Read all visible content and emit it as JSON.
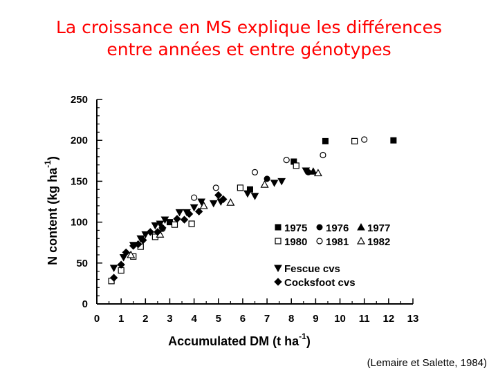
{
  "slide": {
    "title_line1": "La croissance en MS explique les différences",
    "title_line2": "entre années et entre génotypes",
    "citation": "(Lemaire et Salette, 1984)"
  },
  "colors": {
    "title": "#ff0000",
    "marks": "#000000"
  },
  "chart_data": {
    "type": "scatter",
    "xlabel": "Accumulated DM  (t ha",
    "xlabel_sup": "-1",
    "xlabel_end": ")",
    "ylabel": "N content  (kg ha",
    "ylabel_sup": "-1",
    "ylabel_end": ")",
    "xlim": [
      0,
      13
    ],
    "ylim": [
      0,
      250
    ],
    "xticks": [
      "0",
      "1",
      "2",
      "3",
      "4",
      "5",
      "6",
      "7",
      "8",
      "9",
      "10",
      "11",
      "12",
      "13"
    ],
    "yticks": [
      "0",
      "50",
      "100",
      "150",
      "200",
      "250"
    ],
    "grid": false,
    "legend_placement": "right",
    "legend": {
      "years_row1": [
        "1975",
        "1976",
        "1977"
      ],
      "years_row2": [
        "1980",
        "1981",
        "1982"
      ],
      "groups": [
        "Fescue cvs",
        "Cocksfoot cvs"
      ]
    },
    "series": [
      {
        "name": "1975",
        "marker": "square-filled",
        "points": [
          [
            3.0,
            100
          ],
          [
            6.3,
            140
          ],
          [
            8.1,
            174
          ],
          [
            9.4,
            199
          ],
          [
            12.2,
            200
          ]
        ]
      },
      {
        "name": "1976",
        "marker": "circle-filled",
        "points": [
          [
            7.0,
            153
          ],
          [
            8.7,
            161
          ]
        ]
      },
      {
        "name": "1977",
        "marker": "triangle-up-filled",
        "points": [
          [
            8.9,
            162
          ]
        ]
      },
      {
        "name": "1980",
        "marker": "square-open",
        "points": [
          [
            0.6,
            28
          ],
          [
            1.0,
            41
          ],
          [
            1.5,
            58
          ],
          [
            1.8,
            70
          ],
          [
            2.4,
            82
          ],
          [
            3.2,
            97
          ],
          [
            3.9,
            98
          ],
          [
            5.9,
            142
          ],
          [
            8.2,
            169
          ],
          [
            10.6,
            199
          ]
        ]
      },
      {
        "name": "1981",
        "marker": "circle-open",
        "points": [
          [
            2.7,
            92
          ],
          [
            4.0,
            130
          ],
          [
            4.9,
            142
          ],
          [
            6.5,
            161
          ],
          [
            7.8,
            176
          ],
          [
            9.3,
            182
          ],
          [
            11.0,
            201
          ]
        ]
      },
      {
        "name": "1982",
        "marker": "triangle-up-open",
        "points": [
          [
            1.4,
            60
          ],
          [
            2.6,
            85
          ],
          [
            4.4,
            120
          ],
          [
            5.5,
            124
          ],
          [
            6.9,
            146
          ],
          [
            9.1,
            160
          ]
        ]
      },
      {
        "name": "Fescue cvs",
        "marker": "triangle-down-filled",
        "points": [
          [
            0.7,
            44
          ],
          [
            1.1,
            57
          ],
          [
            1.5,
            72
          ],
          [
            1.8,
            80
          ],
          [
            2.0,
            85
          ],
          [
            2.4,
            96
          ],
          [
            2.6,
            98
          ],
          [
            2.8,
            103
          ],
          [
            3.4,
            112
          ],
          [
            3.7,
            112
          ],
          [
            4.0,
            118
          ],
          [
            4.3,
            125
          ],
          [
            4.8,
            123
          ],
          [
            5.1,
            125
          ],
          [
            6.2,
            135
          ],
          [
            6.5,
            132
          ],
          [
            7.3,
            148
          ],
          [
            7.6,
            150
          ],
          [
            8.6,
            163
          ]
        ]
      },
      {
        "name": "Cocksfoot cvs",
        "marker": "diamond-filled",
        "points": [
          [
            0.7,
            32
          ],
          [
            1.0,
            48
          ],
          [
            1.2,
            63
          ],
          [
            1.5,
            71
          ],
          [
            1.7,
            73
          ],
          [
            1.9,
            78
          ],
          [
            2.2,
            88
          ],
          [
            2.5,
            88
          ],
          [
            2.7,
            93
          ],
          [
            3.3,
            104
          ],
          [
            3.6,
            103
          ],
          [
            3.8,
            110
          ],
          [
            4.2,
            113
          ],
          [
            5.0,
            133
          ],
          [
            5.2,
            128
          ]
        ]
      }
    ]
  }
}
